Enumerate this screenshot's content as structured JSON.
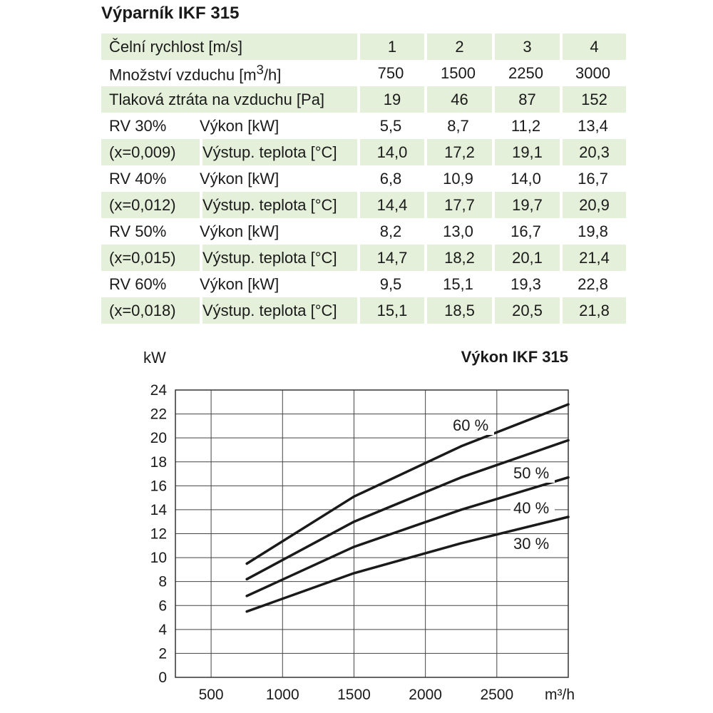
{
  "doc": {
    "title": "Výparník IKF 315"
  },
  "table": {
    "header": {
      "label": "Čelní rychlost [m/s]",
      "values": [
        "1",
        "2",
        "3",
        "4"
      ]
    },
    "air_volume": {
      "label": "Množství vzduchu [m³/h]",
      "values": [
        "750",
        "1500",
        "2250",
        "3000"
      ]
    },
    "pressure_loss": {
      "label": "Tlaková ztráta na vzduchu [Pa]",
      "values": [
        "19",
        "46",
        "87",
        "152"
      ]
    },
    "groups": [
      {
        "rv": "RV 30%",
        "x": "(x=0,009)",
        "power_label": "Výkon [kW]",
        "power": [
          "5,5",
          "8,7",
          "11,2",
          "13,4"
        ],
        "temp_label": "Výstup. teplota [°C]",
        "temp": [
          "14,0",
          "17,2",
          "19,1",
          "20,3"
        ]
      },
      {
        "rv": "RV 40%",
        "x": "(x=0,012)",
        "power_label": "Výkon [kW]",
        "power": [
          "6,8",
          "10,9",
          "14,0",
          "16,7"
        ],
        "temp_label": "Výstup. teplota [°C]",
        "temp": [
          "14,4",
          "17,7",
          "19,7",
          "20,9"
        ]
      },
      {
        "rv": "RV 50%",
        "x": "(x=0,015)",
        "power_label": "Výkon [kW]",
        "power": [
          "8,2",
          "13,0",
          "16,7",
          "19,8"
        ],
        "temp_label": "Výstup. teplota [°C]",
        "temp": [
          "14,7",
          "18,2",
          "20,1",
          "21,4"
        ]
      },
      {
        "rv": "RV 60%",
        "x": "(x=0,018)",
        "power_label": "Výkon [kW]",
        "power": [
          "9,5",
          "15,1",
          "19,3",
          "22,8"
        ],
        "temp_label": "Výstup. teplota [°C]",
        "temp": [
          "15,1",
          "18,5",
          "20,5",
          "21,8"
        ]
      }
    ]
  },
  "colors": {
    "table_band": "#e4f0da",
    "line": "#1a1a1a"
  },
  "chart_data": {
    "type": "line",
    "title": "Výkon IKF 315",
    "xlabel": "m³/h",
    "ylabel": "kW",
    "xlim": [
      0,
      3000
    ],
    "ylim": [
      0,
      24
    ],
    "x_ticks": [
      "500",
      "1000",
      "1500",
      "2000",
      "2500"
    ],
    "y_ticks": [
      "0",
      "2",
      "4",
      "6",
      "8",
      "10",
      "12",
      "14",
      "16",
      "18",
      "20",
      "22",
      "24"
    ],
    "grid": true,
    "x": [
      750,
      1500,
      2250,
      3000
    ],
    "series": [
      {
        "name": "30 %",
        "values": [
          5.5,
          8.7,
          11.2,
          13.4
        ]
      },
      {
        "name": "40 %",
        "values": [
          6.8,
          10.9,
          14.0,
          16.7
        ]
      },
      {
        "name": "50 %",
        "values": [
          8.2,
          13.0,
          16.7,
          19.8
        ]
      },
      {
        "name": "60 %",
        "values": [
          9.5,
          15.1,
          19.3,
          22.8
        ]
      }
    ]
  }
}
